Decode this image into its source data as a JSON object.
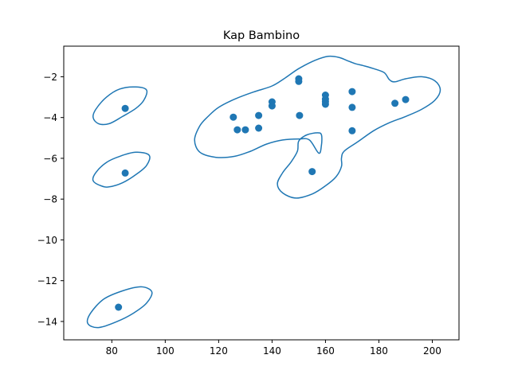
{
  "chart_data": {
    "type": "scatter",
    "title": "Kap Bambino",
    "xlabel": "",
    "ylabel": "",
    "xlim": [
      62,
      210
    ],
    "ylim": [
      -14.9,
      -0.5
    ],
    "xticks": [
      80,
      100,
      120,
      140,
      160,
      180,
      200
    ],
    "yticks": [
      -2,
      -4,
      -6,
      -8,
      -10,
      -12,
      -14
    ],
    "xtick_labels": [
      "80",
      "100",
      "120",
      "140",
      "160",
      "180",
      "200"
    ],
    "ytick_labels": [
      "−2",
      "−4",
      "−6",
      "−8",
      "−10",
      "−12",
      "−14"
    ],
    "grid": false,
    "legend": "none",
    "point_color": "#1f77b4",
    "contour_color": "#1f77b4",
    "points": [
      {
        "x": 85,
        "y": -3.55
      },
      {
        "x": 85,
        "y": -6.72
      },
      {
        "x": 82.5,
        "y": -13.3
      },
      {
        "x": 125.5,
        "y": -3.98
      },
      {
        "x": 127,
        "y": -4.6
      },
      {
        "x": 130,
        "y": -4.6
      },
      {
        "x": 135,
        "y": -3.9
      },
      {
        "x": 135,
        "y": -4.52
      },
      {
        "x": 140,
        "y": -3.23
      },
      {
        "x": 140,
        "y": -3.43
      },
      {
        "x": 150,
        "y": -2.1
      },
      {
        "x": 150,
        "y": -2.23
      },
      {
        "x": 150.3,
        "y": -3.9
      },
      {
        "x": 155,
        "y": -6.65
      },
      {
        "x": 160,
        "y": -2.9
      },
      {
        "x": 160,
        "y": -3.1
      },
      {
        "x": 160,
        "y": -3.22
      },
      {
        "x": 160,
        "y": -3.35
      },
      {
        "x": 170,
        "y": -2.73
      },
      {
        "x": 170,
        "y": -3.5
      },
      {
        "x": 170,
        "y": -4.65
      },
      {
        "x": 186,
        "y": -3.3
      },
      {
        "x": 190,
        "y": -3.12
      }
    ],
    "contours": [
      {
        "name": "upper-left",
        "path": [
          [
            75,
            -4.3
          ],
          [
            73,
            -4
          ],
          [
            74,
            -3.6
          ],
          [
            78,
            -3.0
          ],
          [
            83,
            -2.6
          ],
          [
            89,
            -2.5
          ],
          [
            93,
            -2.65
          ],
          [
            92,
            -3.15
          ],
          [
            89,
            -3.55
          ],
          [
            84,
            -3.95
          ],
          [
            79,
            -4.3
          ]
        ]
      },
      {
        "name": "middle-left",
        "path": [
          [
            76,
            -7.35
          ],
          [
            73,
            -7.1
          ],
          [
            74,
            -6.7
          ],
          [
            78,
            -6.2
          ],
          [
            83,
            -5.9
          ],
          [
            89,
            -5.7
          ],
          [
            94,
            -5.85
          ],
          [
            93,
            -6.35
          ],
          [
            89,
            -6.8
          ],
          [
            84,
            -7.2
          ],
          [
            79,
            -7.4
          ]
        ]
      },
      {
        "name": "bottom-left",
        "path": [
          [
            75,
            -14.3
          ],
          [
            71,
            -14.1
          ],
          [
            72,
            -13.6
          ],
          [
            77,
            -12.9
          ],
          [
            84,
            -12.5
          ],
          [
            91,
            -12.3
          ],
          [
            95,
            -12.55
          ],
          [
            93,
            -13.1
          ],
          [
            88,
            -13.6
          ],
          [
            82,
            -14.0
          ]
        ]
      },
      {
        "name": "main-cluster",
        "path": [
          [
            113,
            -4.4
          ],
          [
            116,
            -3.95
          ],
          [
            120,
            -3.5
          ],
          [
            126,
            -3.1
          ],
          [
            133,
            -2.75
          ],
          [
            140,
            -2.45
          ],
          [
            145,
            -2.05
          ],
          [
            150,
            -1.6
          ],
          [
            156,
            -1.2
          ],
          [
            161,
            -1.0
          ],
          [
            165,
            -1.05
          ],
          [
            168,
            -1.2
          ],
          [
            171,
            -1.35
          ],
          [
            174,
            -1.45
          ],
          [
            178,
            -1.6
          ],
          [
            182,
            -1.8
          ],
          [
            184,
            -2.15
          ],
          [
            186,
            -2.25
          ],
          [
            190,
            -2.1
          ],
          [
            196,
            -2.0
          ],
          [
            201,
            -2.2
          ],
          [
            203,
            -2.65
          ],
          [
            201,
            -3.15
          ],
          [
            196,
            -3.6
          ],
          [
            190,
            -3.95
          ],
          [
            184,
            -4.25
          ],
          [
            178,
            -4.65
          ],
          [
            172,
            -5.2
          ],
          [
            167,
            -5.65
          ],
          [
            166,
            -6.0
          ],
          [
            166,
            -6.4
          ],
          [
            164,
            -6.9
          ],
          [
            160,
            -7.35
          ],
          [
            155,
            -7.75
          ],
          [
            149,
            -7.95
          ],
          [
            144,
            -7.7
          ],
          [
            142,
            -7.25
          ],
          [
            144,
            -6.7
          ],
          [
            147,
            -6.2
          ],
          [
            149.5,
            -5.65
          ],
          [
            150,
            -5.15
          ],
          [
            153,
            -4.85
          ],
          [
            157,
            -4.75
          ],
          [
            158.5,
            -4.85
          ],
          [
            158.5,
            -5.35
          ],
          [
            157.5,
            -5.75
          ],
          [
            154,
            -5.1
          ],
          [
            150,
            -5.05
          ],
          [
            144,
            -5.1
          ],
          [
            138,
            -5.3
          ],
          [
            132,
            -5.65
          ],
          [
            126,
            -5.9
          ],
          [
            119,
            -5.95
          ],
          [
            113,
            -5.7
          ],
          [
            111,
            -5.1
          ]
        ]
      }
    ]
  }
}
